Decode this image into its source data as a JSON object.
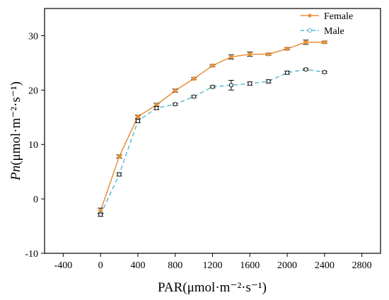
{
  "chart_data": {
    "type": "line",
    "x": [
      0,
      200,
      400,
      600,
      800,
      1000,
      1200,
      1400,
      1600,
      1800,
      2000,
      2200,
      2400
    ],
    "series": [
      {
        "name": "Female",
        "color": "#e8913a",
        "line_style": "solid",
        "marker": "filled-circle",
        "values": [
          -2.2,
          7.8,
          15.1,
          17.3,
          19.9,
          22.1,
          24.5,
          26.1,
          26.6,
          26.6,
          27.6,
          28.8,
          28.8
        ],
        "errors": [
          0.5,
          0.3,
          0.3,
          0.3,
          0.3,
          0.2,
          0.2,
          0.4,
          0.4,
          0.2,
          0.2,
          0.4,
          0.2
        ]
      },
      {
        "name": "Male",
        "color": "#5bbcd6",
        "line_style": "dashed",
        "marker": "open-circle",
        "values": [
          -2.9,
          4.5,
          14.3,
          16.7,
          17.4,
          18.8,
          20.6,
          20.9,
          21.2,
          21.6,
          23.2,
          23.8,
          23.3
        ],
        "errors": [
          0.3,
          0.3,
          0.3,
          0.3,
          0.2,
          0.2,
          0.2,
          0.9,
          0.3,
          0.3,
          0.3,
          0.2,
          0.2
        ]
      }
    ],
    "xlabel": "PAR(μmol·m⁻²·s⁻¹)",
    "ylabel_italic": "Pn",
    "ylabel_rest": "(μmol·m⁻²·s⁻¹)",
    "xlim": [
      -600,
      3000
    ],
    "ylim": [
      -10,
      35
    ],
    "xticks": [
      -400,
      0,
      400,
      800,
      1200,
      1600,
      2000,
      2400,
      2800
    ],
    "yticks": [
      -10,
      0,
      10,
      20,
      30
    ],
    "grid": false,
    "legend_placement": "top-right"
  }
}
